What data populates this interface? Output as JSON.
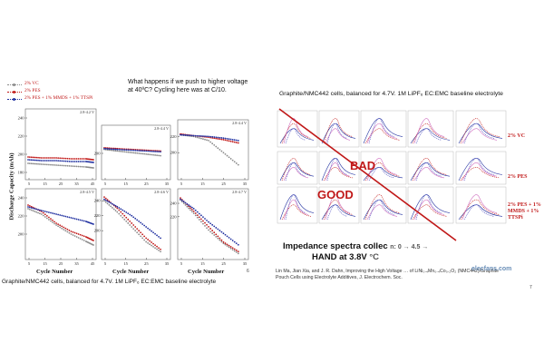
{
  "left_slide": {
    "legend": [
      {
        "label": "2% VC",
        "color": "#8a8a8a"
      },
      {
        "label": "2% PES",
        "color": "#c01818"
      },
      {
        "label": "2% PES + 1% MMDS + 1% TTSPi",
        "color": "#2030a0"
      }
    ],
    "note": "What happens if we push to higher voltage at 40ºC? Cycling here was at C/10.",
    "y_axis_title": "Discharge Capacity (mAh)",
    "x_axis_title": "Cycle Number",
    "page_number": "6",
    "caption": "Graphite/NMC442 cells, balanced for 4.7V.  1M LiPF₆ EC:EMC baseline electrolyte"
  },
  "right_slide": {
    "caption": "Graphite/NMC442 cells, balanced for 4.7V.  1M LiPF₆ EC:EMC baseline electrolyte",
    "row_labels": [
      "2% VC",
      "2% PES",
      "2% PES + 1% MMDS + 1% TTSPi"
    ],
    "bad_label": "BAD",
    "good_label": "GOOD",
    "impedance_line1": "Impedance spectra collec",
    "impedance_line1_tail": "n: 0 → 4.5 →",
    "impedance_line2": "HAND at 3.8V",
    "impedance_line2_tail": "°C",
    "citation": "Lin Ma, Jian Xia, and J. R. Dahn, Improving the High Voltage … of LiNi₀.₄Mn₀.₄Co₀.₂O₂ (NMC442)/Graphite Pouch Cells using Electrolyte Additives, J. Electrochem. Soc.",
    "page_number": "7",
    "watermark": "elecfans.com"
  },
  "chart_data": [
    {
      "type": "scatter",
      "title": "",
      "xlabel": "Cycle Number",
      "ylabel": "Discharge Capacity (mAh)",
      "panels": [
        {
          "label": "2.8-4.2 V",
          "x_ticks": [
            "5",
            "15",
            "25",
            "35",
            "45"
          ],
          "y_ticks": [
            "240",
            "220",
            "200",
            "180"
          ],
          "ylim": [
            175,
            245
          ],
          "series": [
            {
              "name": "2% VC",
              "x": [
                1,
                10,
                20,
                30,
                40,
                45
              ],
              "y": [
                190,
                189,
                188,
                187,
                186,
                185
              ]
            },
            {
              "name": "2% PES",
              "x": [
                1,
                10,
                20,
                30,
                40,
                45
              ],
              "y": [
                197,
                196,
                196,
                195,
                195,
                194
              ]
            },
            {
              "name": "2% PES + 1% MMDS + 1% TTSPi",
              "x": [
                1,
                10,
                20,
                30,
                40,
                45
              ],
              "y": [
                194,
                193,
                193,
                192,
                192,
                191
              ]
            }
          ]
        },
        {
          "label": "2.8-4.4 V",
          "x_ticks": [
            "5",
            "15",
            "25",
            "35"
          ],
          "y_ticks": [
            "200"
          ],
          "ylim": [
            170,
            230
          ],
          "series": [
            {
              "name": "2% VC",
              "x": [
                1,
                10,
                20,
                30,
                40
              ],
              "y": [
                205,
                203,
                201,
                199,
                197
              ]
            },
            {
              "name": "2% PES",
              "x": [
                1,
                10,
                20,
                30,
                40
              ],
              "y": [
                207,
                206,
                205,
                204,
                203
              ]
            },
            {
              "name": "2% PES + 1% MMDS + 1% TTSPi",
              "x": [
                1,
                10,
                20,
                30,
                40
              ],
              "y": [
                206,
                205,
                204,
                203,
                202
              ]
            }
          ]
        },
        {
          "label": "2.8-4.4 V",
          "x_ticks": [
            "5",
            "15",
            "25",
            "35"
          ],
          "y_ticks": [
            "220",
            "200"
          ],
          "ylim": [
            170,
            235
          ],
          "series": [
            {
              "name": "2% VC",
              "x": [
                1,
                10,
                20,
                30,
                40
              ],
              "y": [
                222,
                220,
                215,
                200,
                185
              ]
            },
            {
              "name": "2% PES",
              "x": [
                1,
                10,
                20,
                30,
                40
              ],
              "y": [
                223,
                221,
                219,
                216,
                212
              ]
            },
            {
              "name": "2% PES + 1% MMDS + 1% TTSPi",
              "x": [
                1,
                10,
                20,
                30,
                40
              ],
              "y": [
                222,
                221,
                220,
                218,
                215
              ]
            }
          ]
        },
        {
          "label": "2.8-4.5 V",
          "x_ticks": [
            "5",
            "15",
            "25",
            "35",
            "45"
          ],
          "y_ticks": [
            "240",
            "220",
            "200"
          ],
          "ylim": [
            175,
            245
          ],
          "series": [
            {
              "name": "2% VC",
              "x": [
                1,
                10,
                20,
                30,
                40,
                45
              ],
              "y": [
                228,
                222,
                210,
                200,
                192,
                188
              ]
            },
            {
              "name": "2% PES",
              "x": [
                1,
                10,
                20,
                30,
                40,
                45
              ],
              "y": [
                232,
                225,
                212,
                203,
                197,
                193
              ]
            },
            {
              "name": "2% PES + 1% MMDS + 1% TTSPi",
              "x": [
                1,
                10,
                20,
                30,
                40,
                45
              ],
              "y": [
                230,
                226,
                222,
                218,
                214,
                211
              ]
            }
          ]
        },
        {
          "label": "2.8-4.6 V",
          "x_ticks": [
            "5",
            "15",
            "25",
            "35"
          ],
          "y_ticks": [
            "240",
            "220",
            "200"
          ],
          "ylim": [
            165,
            250
          ],
          "series": [
            {
              "name": "2% VC",
              "x": [
                1,
                10,
                20,
                30,
                40
              ],
              "y": [
                240,
                225,
                205,
                185,
                172
              ]
            },
            {
              "name": "2% PES",
              "x": [
                1,
                10,
                20,
                30,
                40
              ],
              "y": [
                245,
                230,
                210,
                190,
                175
              ]
            },
            {
              "name": "2% PES + 1% MMDS + 1% TTSPi",
              "x": [
                1,
                10,
                20,
                30,
                40
              ],
              "y": [
                242,
                232,
                220,
                205,
                190
              ]
            }
          ]
        },
        {
          "label": "2.8-4.7 V",
          "x_ticks": [
            "5",
            "15",
            "25",
            "35"
          ],
          "y_ticks": [
            "240",
            "220"
          ],
          "ylim": [
            160,
            255
          ],
          "series": [
            {
              "name": "2% VC",
              "x": [
                1,
                10,
                20,
                30,
                40
              ],
              "y": [
                245,
                225,
                200,
                180,
                165
              ]
            },
            {
              "name": "2% PES",
              "x": [
                1,
                10,
                20,
                30,
                40
              ],
              "y": [
                248,
                228,
                205,
                182,
                168
              ]
            },
            {
              "name": "2% PES + 1% MMDS + 1% TTSPi",
              "x": [
                1,
                10,
                20,
                30,
                40
              ],
              "y": [
                246,
                232,
                212,
                195,
                178
              ]
            }
          ]
        }
      ]
    },
    {
      "type": "line",
      "title": "",
      "xlabel": "",
      "ylabel": "",
      "rows": [
        "2% VC",
        "2% PES",
        "2% PES + 1% MMDS + 1% TTSPi"
      ],
      "columns": 5,
      "annotations": [
        "BAD",
        "GOOD"
      ]
    }
  ],
  "colors": {
    "red": "#c01818",
    "blue": "#2030a0",
    "gray": "#8a8a8a",
    "pink": "#d070c0"
  }
}
